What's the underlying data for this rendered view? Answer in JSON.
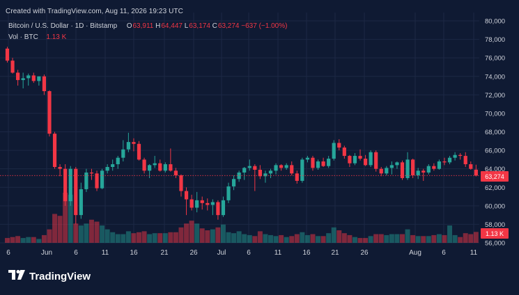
{
  "header": {
    "created_note": "Created with TradingView.com, Aug 11, 2026 19:23 UTC",
    "symbol": "Bitcoin / U.S. Dollar · 1D · Bitstamp",
    "o_label": "O",
    "o_value": "63,911",
    "h_label": "H",
    "h_value": "64,447",
    "l_label": "L",
    "l_value": "63,174",
    "c_label": "C",
    "c_value": "63,274",
    "change": "−637 (−1.00%)",
    "vol_label": "Vol · BTC",
    "vol_value": "1.13 K"
  },
  "badges": {
    "price": "63,274",
    "volume": "1.13 K"
  },
  "brand": {
    "name": "TradingView",
    "icon": "tradingview-logo-icon"
  },
  "colors": {
    "up": "#26a69a",
    "down": "#f23645",
    "background": "#0f1a33"
  },
  "chart_data": {
    "type": "candlestick",
    "y_axis": {
      "ticks": [
        "80,000",
        "78,000",
        "76,000",
        "74,000",
        "72,000",
        "70,000",
        "68,000",
        "66,000",
        "64,000",
        "62,000",
        "60,000",
        "58,000",
        "56,000"
      ],
      "min": 56000,
      "max": 80000
    },
    "x_axis": {
      "tick_labels": [
        "6",
        "Jun",
        "6",
        "11",
        "16",
        "21",
        "26",
        "Jul",
        "6",
        "11",
        "16",
        "21",
        "26",
        "Aug",
        "6",
        "11"
      ],
      "tick_dates": [
        "2026-05-06",
        "2026-06-01",
        "2026-06-06",
        "2026-06-11",
        "2026-06-16",
        "2026-06-21",
        "2026-06-26",
        "2026-07-01",
        "2026-07-06",
        "2026-07-11",
        "2026-07-16",
        "2026-07-21",
        "2026-07-26",
        "2026-08-01",
        "2026-08-06",
        "2026-08-11"
      ]
    },
    "last_price": 63274,
    "grid": true,
    "candles": [
      {
        "o": 77000,
        "h": 77200,
        "l": 75500,
        "c": 75700,
        "v": 0.5
      },
      {
        "o": 75700,
        "h": 76000,
        "l": 74300,
        "c": 74400,
        "v": 0.6
      },
      {
        "o": 74400,
        "h": 74700,
        "l": 73000,
        "c": 73600,
        "v": 0.7
      },
      {
        "o": 73600,
        "h": 74400,
        "l": 72700,
        "c": 73800,
        "v": 0.5
      },
      {
        "o": 73800,
        "h": 74300,
        "l": 73000,
        "c": 74100,
        "v": 0.6
      },
      {
        "o": 74100,
        "h": 74400,
        "l": 73300,
        "c": 73500,
        "v": 0.6
      },
      {
        "o": 73500,
        "h": 74000,
        "l": 73000,
        "c": 74000,
        "v": 0.4
      },
      {
        "o": 74000,
        "h": 74200,
        "l": 72000,
        "c": 72400,
        "v": 0.8
      },
      {
        "o": 72400,
        "h": 72500,
        "l": 67500,
        "c": 67800,
        "v": 1.4
      },
      {
        "o": 67800,
        "h": 68000,
        "l": 64000,
        "c": 64200,
        "v": 3.0
      },
      {
        "o": 64200,
        "h": 64500,
        "l": 63200,
        "c": 64000,
        "v": 2.8
      },
      {
        "o": 64000,
        "h": 64500,
        "l": 60000,
        "c": 60500,
        "v": 5.2
      },
      {
        "o": 60500,
        "h": 64300,
        "l": 60000,
        "c": 64000,
        "v": 5.0
      },
      {
        "o": 64000,
        "h": 64200,
        "l": 58000,
        "c": 59000,
        "v": 2.0
      },
      {
        "o": 59000,
        "h": 62500,
        "l": 58600,
        "c": 61800,
        "v": 1.8
      },
      {
        "o": 61800,
        "h": 64000,
        "l": 61500,
        "c": 63600,
        "v": 2.0
      },
      {
        "o": 63600,
        "h": 64000,
        "l": 62800,
        "c": 63500,
        "v": 2.4
      },
      {
        "o": 63500,
        "h": 63800,
        "l": 61600,
        "c": 61900,
        "v": 2.2
      },
      {
        "o": 61900,
        "h": 64000,
        "l": 61800,
        "c": 63800,
        "v": 1.8
      },
      {
        "o": 63800,
        "h": 64500,
        "l": 63500,
        "c": 64200,
        "v": 1.4
      },
      {
        "o": 64200,
        "h": 65000,
        "l": 63800,
        "c": 64500,
        "v": 1.1
      },
      {
        "o": 64500,
        "h": 65400,
        "l": 64000,
        "c": 65200,
        "v": 0.9
      },
      {
        "o": 65200,
        "h": 67100,
        "l": 64800,
        "c": 66100,
        "v": 0.9
      },
      {
        "o": 66100,
        "h": 67900,
        "l": 65800,
        "c": 66900,
        "v": 1.2
      },
      {
        "o": 66900,
        "h": 67300,
        "l": 65900,
        "c": 66700,
        "v": 1.0
      },
      {
        "o": 66700,
        "h": 67000,
        "l": 64900,
        "c": 65000,
        "v": 1.1
      },
      {
        "o": 65000,
        "h": 65200,
        "l": 63500,
        "c": 63800,
        "v": 1.2
      },
      {
        "o": 63800,
        "h": 64500,
        "l": 63000,
        "c": 64400,
        "v": 0.9
      },
      {
        "o": 64400,
        "h": 65400,
        "l": 64100,
        "c": 64600,
        "v": 1.0
      },
      {
        "o": 64600,
        "h": 65000,
        "l": 63700,
        "c": 63800,
        "v": 1.0
      },
      {
        "o": 63800,
        "h": 64700,
        "l": 63600,
        "c": 64500,
        "v": 1.0
      },
      {
        "o": 64500,
        "h": 66200,
        "l": 63700,
        "c": 63800,
        "v": 1.1
      },
      {
        "o": 63800,
        "h": 64100,
        "l": 63000,
        "c": 63300,
        "v": 1.1
      },
      {
        "o": 63300,
        "h": 63400,
        "l": 61000,
        "c": 61600,
        "v": 1.6
      },
      {
        "o": 61600,
        "h": 62000,
        "l": 59000,
        "c": 60700,
        "v": 2.0
      },
      {
        "o": 60700,
        "h": 61200,
        "l": 59500,
        "c": 59800,
        "v": 2.3
      },
      {
        "o": 59800,
        "h": 61500,
        "l": 59300,
        "c": 60600,
        "v": 2.0
      },
      {
        "o": 60600,
        "h": 61000,
        "l": 59600,
        "c": 60300,
        "v": 1.5
      },
      {
        "o": 60300,
        "h": 60800,
        "l": 59500,
        "c": 60100,
        "v": 1.3
      },
      {
        "o": 60100,
        "h": 60700,
        "l": 59000,
        "c": 60400,
        "v": 1.4
      },
      {
        "o": 60400,
        "h": 60600,
        "l": 58500,
        "c": 59000,
        "v": 1.6
      },
      {
        "o": 59000,
        "h": 61000,
        "l": 58800,
        "c": 60600,
        "v": 1.9
      },
      {
        "o": 60600,
        "h": 62500,
        "l": 60300,
        "c": 62100,
        "v": 1.1
      },
      {
        "o": 62100,
        "h": 63300,
        "l": 61700,
        "c": 62900,
        "v": 1.0
      },
      {
        "o": 62900,
        "h": 63800,
        "l": 62600,
        "c": 63600,
        "v": 1.2
      },
      {
        "o": 63600,
        "h": 64200,
        "l": 62800,
        "c": 64100,
        "v": 0.9
      },
      {
        "o": 64100,
        "h": 65000,
        "l": 63800,
        "c": 64300,
        "v": 0.8
      },
      {
        "o": 64300,
        "h": 64500,
        "l": 61600,
        "c": 63900,
        "v": 0.7
      },
      {
        "o": 63900,
        "h": 64400,
        "l": 62900,
        "c": 63200,
        "v": 1.2
      },
      {
        "o": 63200,
        "h": 63800,
        "l": 62500,
        "c": 63500,
        "v": 0.9
      },
      {
        "o": 63500,
        "h": 64000,
        "l": 63000,
        "c": 63800,
        "v": 0.8
      },
      {
        "o": 63800,
        "h": 64600,
        "l": 63400,
        "c": 64400,
        "v": 0.7
      },
      {
        "o": 64400,
        "h": 64500,
        "l": 63800,
        "c": 64100,
        "v": 0.8
      },
      {
        "o": 64100,
        "h": 64600,
        "l": 63900,
        "c": 64400,
        "v": 0.6
      },
      {
        "o": 64400,
        "h": 64800,
        "l": 63300,
        "c": 63500,
        "v": 0.7
      },
      {
        "o": 63500,
        "h": 63800,
        "l": 62400,
        "c": 62700,
        "v": 0.9
      },
      {
        "o": 62700,
        "h": 65200,
        "l": 62500,
        "c": 65000,
        "v": 1.1
      },
      {
        "o": 65000,
        "h": 65400,
        "l": 64700,
        "c": 65200,
        "v": 0.8
      },
      {
        "o": 65200,
        "h": 65400,
        "l": 63800,
        "c": 64100,
        "v": 0.9
      },
      {
        "o": 64100,
        "h": 65000,
        "l": 63900,
        "c": 64800,
        "v": 0.7
      },
      {
        "o": 64800,
        "h": 65200,
        "l": 64200,
        "c": 64300,
        "v": 0.7
      },
      {
        "o": 64300,
        "h": 65400,
        "l": 64100,
        "c": 65100,
        "v": 1.0
      },
      {
        "o": 65100,
        "h": 67100,
        "l": 64900,
        "c": 66800,
        "v": 1.6
      },
      {
        "o": 66800,
        "h": 67200,
        "l": 66000,
        "c": 66300,
        "v": 1.3
      },
      {
        "o": 66300,
        "h": 66500,
        "l": 65100,
        "c": 65400,
        "v": 1.0
      },
      {
        "o": 65400,
        "h": 65500,
        "l": 64200,
        "c": 64600,
        "v": 0.8
      },
      {
        "o": 64600,
        "h": 65700,
        "l": 64400,
        "c": 65400,
        "v": 0.6
      },
      {
        "o": 65400,
        "h": 66100,
        "l": 64900,
        "c": 65100,
        "v": 0.5
      },
      {
        "o": 65100,
        "h": 65500,
        "l": 64300,
        "c": 64400,
        "v": 0.5
      },
      {
        "o": 64400,
        "h": 66000,
        "l": 64200,
        "c": 65800,
        "v": 0.7
      },
      {
        "o": 65800,
        "h": 66000,
        "l": 63700,
        "c": 64000,
        "v": 0.9
      },
      {
        "o": 64000,
        "h": 64200,
        "l": 63200,
        "c": 63500,
        "v": 0.9
      },
      {
        "o": 63500,
        "h": 64300,
        "l": 63300,
        "c": 64100,
        "v": 0.8
      },
      {
        "o": 64100,
        "h": 64800,
        "l": 63400,
        "c": 64400,
        "v": 0.9
      },
      {
        "o": 64400,
        "h": 64800,
        "l": 64000,
        "c": 64700,
        "v": 0.9
      },
      {
        "o": 64700,
        "h": 64900,
        "l": 62800,
        "c": 63000,
        "v": 0.9
      },
      {
        "o": 63000,
        "h": 65800,
        "l": 62800,
        "c": 65000,
        "v": 1.4
      },
      {
        "o": 65000,
        "h": 65100,
        "l": 63000,
        "c": 63300,
        "v": 0.8
      },
      {
        "o": 63300,
        "h": 64100,
        "l": 62900,
        "c": 63800,
        "v": 0.7
      },
      {
        "o": 63800,
        "h": 64000,
        "l": 62700,
        "c": 63600,
        "v": 0.7
      },
      {
        "o": 63600,
        "h": 64500,
        "l": 63400,
        "c": 64300,
        "v": 0.7
      },
      {
        "o": 64300,
        "h": 64600,
        "l": 63800,
        "c": 64000,
        "v": 0.8
      },
      {
        "o": 64000,
        "h": 65000,
        "l": 63900,
        "c": 64800,
        "v": 0.9
      },
      {
        "o": 64800,
        "h": 65200,
        "l": 64400,
        "c": 64700,
        "v": 0.8
      },
      {
        "o": 64700,
        "h": 65400,
        "l": 64500,
        "c": 65200,
        "v": 1.8
      },
      {
        "o": 65200,
        "h": 65800,
        "l": 64900,
        "c": 65500,
        "v": 0.8
      },
      {
        "o": 65500,
        "h": 65700,
        "l": 65000,
        "c": 65400,
        "v": 0.6
      },
      {
        "o": 65400,
        "h": 65800,
        "l": 64200,
        "c": 64500,
        "v": 1.0
      },
      {
        "o": 64500,
        "h": 64800,
        "l": 63900,
        "c": 64000,
        "v": 0.9
      },
      {
        "o": 63911,
        "h": 64447,
        "l": 63174,
        "c": 63274,
        "v": 1.13
      }
    ]
  }
}
